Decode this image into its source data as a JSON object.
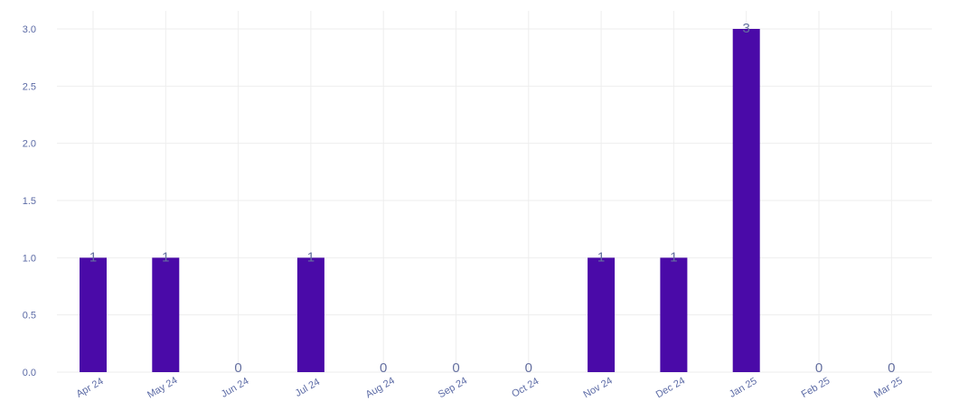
{
  "chart_data": {
    "type": "bar",
    "categories": [
      "Apr 24",
      "May 24",
      "Jun 24",
      "Jul 24",
      "Aug 24",
      "Sep 24",
      "Oct 24",
      "Nov 24",
      "Dec 24",
      "Jan 25",
      "Feb 25",
      "Mar 25"
    ],
    "series": [
      {
        "values": [
          1,
          1,
          0,
          1,
          0,
          0,
          0,
          1,
          1,
          3,
          0,
          0
        ]
      }
    ],
    "data_labels": [
      "1",
      "1",
      "0",
      "1",
      "0",
      "0",
      "0",
      "1",
      "1",
      "3",
      "0",
      "0"
    ],
    "yticks": [
      "0.0",
      "0.5",
      "1.0",
      "1.5",
      "2.0",
      "2.5",
      "3.0"
    ],
    "ylim": [
      0,
      3.15
    ],
    "grid": true,
    "legend": "none",
    "bar_color": "#4a0aa8",
    "text_color": "#5b6aa5",
    "grid_color": "#eeeeee"
  }
}
